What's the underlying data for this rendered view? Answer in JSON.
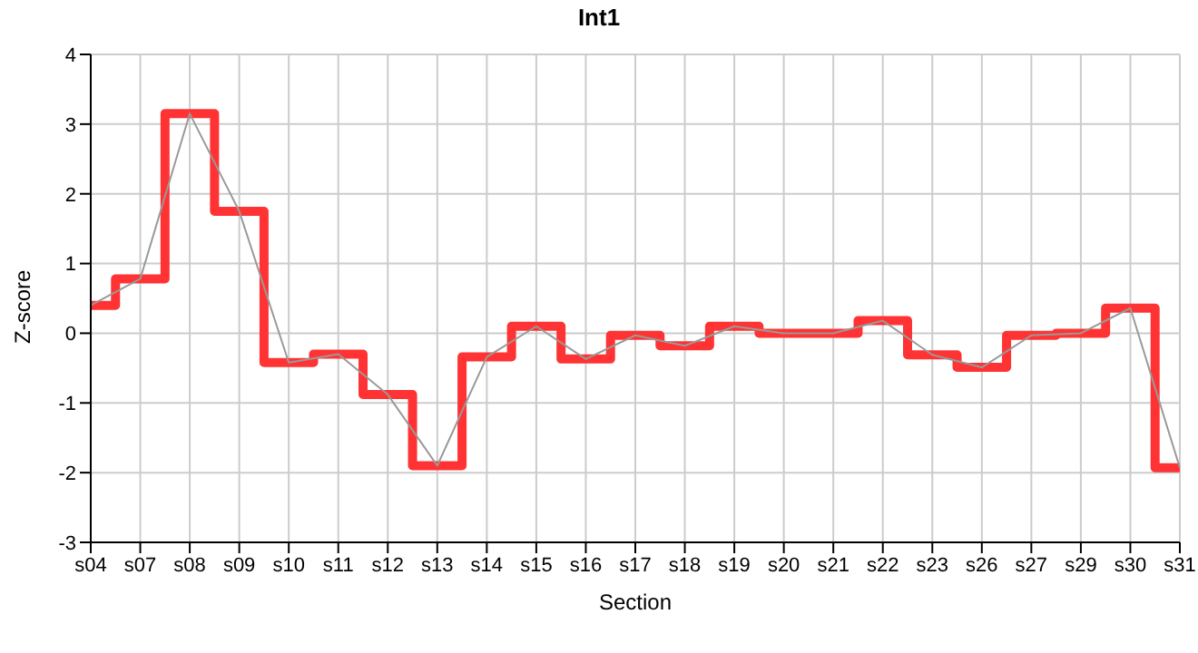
{
  "chart_data": {
    "type": "step",
    "title": "Int1",
    "xlabel": "Section",
    "ylabel": "Z-score",
    "categories": [
      "s04",
      "s07",
      "s08",
      "s09",
      "s10",
      "s11",
      "s12",
      "s13",
      "s14",
      "s15",
      "s16",
      "s17",
      "s18",
      "s19",
      "s20",
      "s21",
      "s22",
      "s23",
      "s26",
      "s27",
      "s29",
      "s30",
      "s31"
    ],
    "series": [
      {
        "color": "#ff3333",
        "values": [
          0.4,
          0.78,
          3.15,
          1.75,
          -0.42,
          -0.3,
          -0.88,
          -1.9,
          -0.34,
          0.1,
          -0.37,
          -0.03,
          -0.18,
          0.1,
          0,
          0,
          0.18,
          -0.31,
          -0.49,
          -0.03,
          0,
          0.36,
          -1.93
        ]
      },
      {
        "type": "line",
        "color": "#999999",
        "values": [
          0.4,
          0.78,
          3.15,
          1.75,
          -0.42,
          -0.3,
          -0.88,
          -1.9,
          -0.34,
          0.1,
          -0.37,
          -0.03,
          -0.18,
          0.1,
          0,
          0,
          0.18,
          -0.31,
          -0.49,
          -0.03,
          0,
          0.36,
          -1.93
        ]
      }
    ],
    "ylim": [
      -3,
      4
    ],
    "yticks": [
      -3,
      -2,
      -1,
      0,
      1,
      2,
      3,
      4
    ],
    "grid": true,
    "marker": "none",
    "line_style": "solid"
  }
}
